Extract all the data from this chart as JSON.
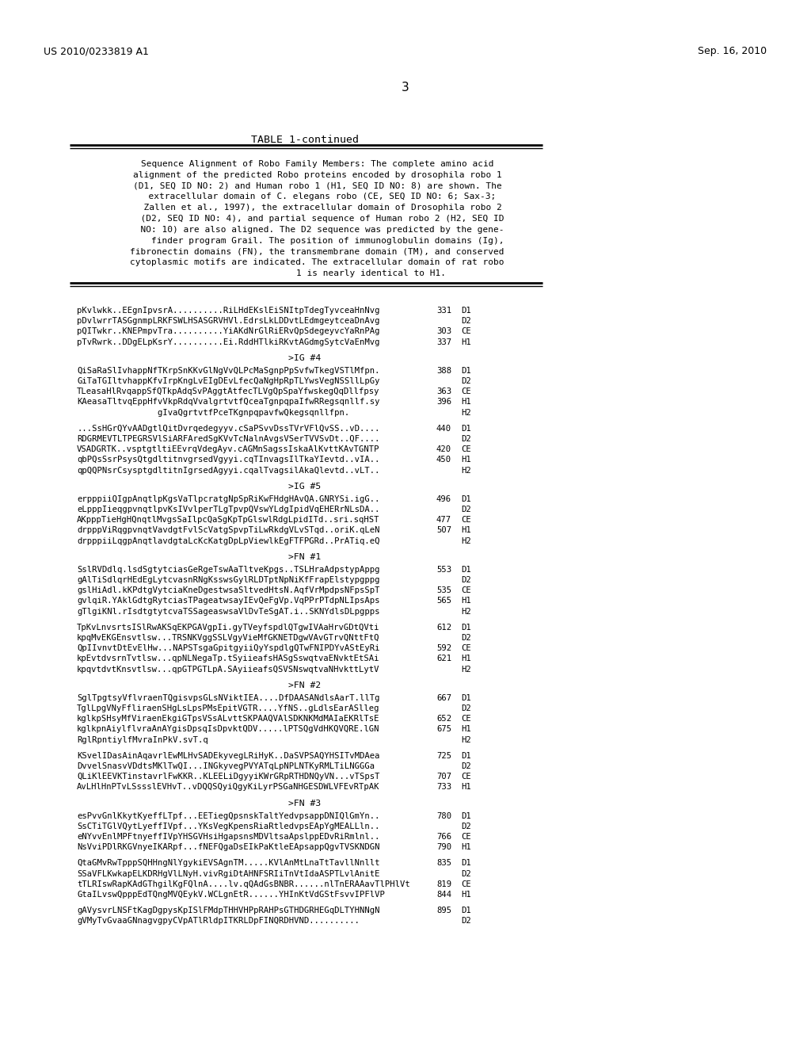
{
  "header_left": "US 2010/0233819 A1",
  "header_right": "Sep. 16, 2010",
  "page_number": "3",
  "table_title": "TABLE 1-continued",
  "description_text": [
    "    Sequence Alignment of Robo Family Members: The complete amino acid",
    "    alignment of the predicted Robo proteins encoded by drosophila robo 1",
    "    (D1, SEQ ID NO: 2) and Human robo 1 (H1, SEQ ID NO: 8) are shown. The",
    "      extracellular domain of C. elegans robo (CE, SEQ ID NO: 6; Sax-3;",
    "      Zallen et al., 1997), the extracellular domain of Drosophila robo 2",
    "      (D2, SEQ ID NO: 4), and partial sequence of Human robo 2 (H2, SEQ ID",
    "      NO: 10) are also aligned. The D2 sequence was predicted by the gene-",
    "        finder program Grail. The position of immunoglobulin domains (Ig),",
    "    fibronectin domains (FN), the transmembrane domain (TM), and conserved",
    "    cytoplasmic motifs are indicated. The extracellular domain of rat robo",
    "                        1 is nearly identical to H1."
  ],
  "sequence_blocks": [
    {
      "lines": [
        {
          "text": "pKvlwkk..EEgnIpvsrA..........RiLHdEKslEiSNItpTdegTyvceaHnNvg",
          "num": "331",
          "label": "D1"
        },
        {
          "text": "pDvlwrrTASGgnmpLRKFSWLHSASGRVHVl.EdrsLkLDDvtLEdmgeytceaDnAvg",
          "num": "",
          "label": "D2"
        },
        {
          "text": "pQITwkr..KNEPmpvTra..........YiAKdNrGlRiERvQpSdegeyvcYaRnPAg",
          "num": "303",
          "label": "CE"
        },
        {
          "text": "pTvRwrk..DDgELpKsrY..........Ei.RddHTlkiRKvtAGdmgSytcVaEnMvg",
          "num": "337",
          "label": "H1"
        }
      ]
    },
    {
      "header": ">IG #4",
      "lines": [
        {
          "text": "QiSaRaSlIvhappNfTKrpSnKKvGlNgVvQLPcMaSgnpPpSvfwTkegVSTlMfpn.",
          "num": "388",
          "label": "D1"
        },
        {
          "text": "GiTaTGIltvhappKfvIrpKngLvEIgDEvLfecQaNgHpRpTLYwsVegNSSllLpGy",
          "num": "",
          "label": "D2"
        },
        {
          "text": "TLeasaHlRvqappSfQTkpAdqSvPAggtAtfecTLVgQpSpaYfwskegQqDllfpsy",
          "num": "363",
          "label": "CE"
        },
        {
          "text": "KAeasaTltvqEppHfvVkpRdqVvalgrtvtfQceaTgnpqpaIfwRRegsqnllf.sy",
          "num": "396",
          "label": "H1"
        },
        {
          "text": "                gIvaQgrtvtfPceTKgnpqpavfwQkegsqnllfpn.",
          "num": "",
          "label": "H2"
        }
      ]
    },
    {
      "lines": [
        {
          "text": "...SsHGrQYvAADgtlQitDvrqedegyyv.cSaPSvvDssTVrVFlQvSS..vD....",
          "num": "440",
          "label": "D1"
        },
        {
          "text": "RDGRMEVTLTPEGRSVlSiARFAredSgKVvTcNalnAvgsVSerTVVSvDt..QF....",
          "num": "",
          "label": "D2"
        },
        {
          "text": "VSADGRTK..vsptgtltiEEvrqVdegAyv.cAGMnSagssIskaAlKvttKAvTGNTP",
          "num": "420",
          "label": "CE"
        },
        {
          "text": "qbPQsSsrPsysQtgdltitnvgrsedVgyyi.cqTInvagsIlTkaYIevtd..vIA..",
          "num": "450",
          "label": "H1"
        },
        {
          "text": "qpQQPNsrCsysptgdltitnIgrsedAgyyi.cqalTvagsilAkaQlevtd..vLT..",
          "num": "",
          "label": "H2"
        }
      ]
    },
    {
      "header": ">IG #5",
      "lines": [
        {
          "text": "erpppiiQIgpAnqtlpKgsVaTlpcratgNpSpRiKwFHdgHAvQA.GNRYSi.igG..",
          "num": "496",
          "label": "D1"
        },
        {
          "text": "eLpppIieqgpvnqtlpvKsIVvlperTLgTpvpQVswYLdgIpidVqEHERrNLsDA..",
          "num": "",
          "label": "D2"
        },
        {
          "text": "AKpppTieHgHQnqtlMvgsSaIlpcQaSgKpTpGlswlRdgLpidITd..sri.sqHST",
          "num": "477",
          "label": "CE"
        },
        {
          "text": "drpppViRqgpvnqtVavdgtFvlScVatgSpvpTiLwRkdgVLvSTqd..oriK.qLeN",
          "num": "507",
          "label": "H1"
        },
        {
          "text": "drpppiiLqgpAnqtlavdgtaLcKcKatgDpLpViewlkEgFTFPGRd..PrATiq.eQ",
          "num": "",
          "label": "H2"
        }
      ]
    },
    {
      "header": ">FN #1",
      "lines": [
        {
          "text": "SslRVDdlq.lsdSgtytciasGeRgeTswAaTltveKpgs..TSLHraAdpstypAppg",
          "num": "553",
          "label": "D1"
        },
        {
          "text": "gAlTiSdlqrHEdEgLytcvasnRNgKsswsGylRLDTptNpNiKfFrapElstypgppg",
          "num": "",
          "label": "D2"
        },
        {
          "text": "gslHiAdl.kKPdtgVytciaKneDgestwsaSltvedHtsN.AqfVrMpdpsNFpsSpT",
          "num": "535",
          "label": "CE"
        },
        {
          "text": "gvlqiR.YAklGdtgRytciasTPageatwsayIEvQeFgVp.VqPPrPTdpNLIpsAps",
          "num": "565",
          "label": "H1"
        },
        {
          "text": "gTlgiKNl.rIsdtgtytcvaTSSageaswsaVlDvTeSgAT.i..SKNYdlsDLpgpps",
          "num": "",
          "label": "H2"
        }
      ]
    },
    {
      "lines": [
        {
          "text": "TpKvLnvsrtsISlRwAKSqEKPGAVgpIi.gyTVeyfspdlQTgwIVAaHrvGDtQVti",
          "num": "612",
          "label": "D1"
        },
        {
          "text": "kpqMvEKGEnsvtlsw...TRSNKVggSSLVgyVieMfGKNETDgwVAvGTrvQNttFtQ",
          "num": "",
          "label": "D2"
        },
        {
          "text": "QpIIvnvtDtEvElHw...NAPSTsgaGpitgyiiQyYspdlgQTwFNIPDYvAStEyRi",
          "num": "592",
          "label": "CE"
        },
        {
          "text": "kpEvtdvsrnTvtlsw...qpNLNegaTp.tSyiieafsHASgSswqtvaENvktEtSAi",
          "num": "621",
          "label": "H1"
        },
        {
          "text": "kpqvtdvtKnsvtlsw...qpGTPGTLpA.SAyiieafsQSVSNswqtvaNHvkttLytV",
          "num": "",
          "label": "H2"
        }
      ]
    },
    {
      "header": ">FN #2",
      "lines": [
        {
          "text": "SglTpgtsyVflvraenTQgisvpsGLsNViktIEA....DfDAASANdlsAarT.llTg",
          "num": "667",
          "label": "D1"
        },
        {
          "text": "TglLpgVNyFfliraenSHgLsLpsPMsEpitVGTR....YfNS..gLdlsEarASlleg",
          "num": "",
          "label": "D2"
        },
        {
          "text": "kglkpSHsyMfViraenEkgiGTpsVSsALvttSKPAAQVAlSDKNKMdMAIaEKRlTsE",
          "num": "652",
          "label": "CE"
        },
        {
          "text": "kglkpnAiylflvraAnAYgisDpsqIsDpvktQDV.....lPTSQgVdHKQVQRE.lGN",
          "num": "675",
          "label": "H1"
        },
        {
          "text": "RglRpntiylfMvraInPkV.svT.q",
          "num": "",
          "label": "H2"
        }
      ]
    },
    {
      "lines": [
        {
          "text": "KSvelIDasAinAqavrlEwMLHvSADEkyvegLRiHyK..DaSVPSAQYHSITvMDAea",
          "num": "725",
          "label": "D1"
        },
        {
          "text": "DvvelSnasvVDdtsMKlTwQI...INGkyvegPVYATqLpNPLNTKyRMLTiLNGGGa",
          "num": "",
          "label": "D2"
        },
        {
          "text": "QLiKlEEVKTinstavrlFwKKR..KLEELiDgyyiKWrGRpRTHDNQyVN...vTSpsT",
          "num": "707",
          "label": "CE"
        },
        {
          "text": "AvLHlHnPTvLSssslEVHvT..vDQQSQyiQgyKiLyrPSGaNHGESDWLVFEvRTpAK",
          "num": "733",
          "label": "H1"
        }
      ]
    },
    {
      "header": ">FN #3",
      "lines": [
        {
          "text": "esPvvGnlKkytKyeffLTpf...EETiegQpsnskTaltYedvpsappDNIQlGmYn..",
          "num": "780",
          "label": "D1"
        },
        {
          "text": "SsCTiTGlVQytLyeffIVpf...YKsVegKpensRiaRtledvpsEApYgMEALLln..",
          "num": "",
          "label": "D2"
        },
        {
          "text": "eNYvvEnlMPFtnyeffIVpYHSGVHsiHgapsnsMDVltsaApslppEDvRiRmlnl..",
          "num": "766",
          "label": "CE"
        },
        {
          "text": "NsVviPDlRKGVnyeIKARpf...fNEFQgaDsEIkPaKtleEApsappQgvTVSKNDGN",
          "num": "790",
          "label": "H1"
        }
      ]
    },
    {
      "lines": [
        {
          "text": "QtaGMvRwTpppSQHHngNlYgykiEVSAgnTM.....KVlAnMtLnaTtTavllNnllt",
          "num": "835",
          "label": "D1"
        },
        {
          "text": "SSaVFLKwkapELKDRHgVlLNyH.vivRgiDtAHNFSRIiTnVtIdaASPTLvlAnitE",
          "num": "",
          "label": "D2"
        },
        {
          "text": "tTLRIswRapKAdGThgilKgFQlnA....lv.qQAdGsBNBR......nlTnERAAavTlPHlVt",
          "num": "819",
          "label": "CE"
        },
        {
          "text": "GtaILvswQpppEdTQngMVQEykV.WCLgnEtR......YHInKtVdGStFsvvIPFlVP",
          "num": "844",
          "label": "H1"
        }
      ]
    },
    {
      "lines": [
        {
          "text": "gAVysvrLNSFtKagDgpysKpISlFMdpTHHVHPpRAHPsGTHDGRHEGqDLTYHNNgN",
          "num": "895",
          "label": "D1"
        },
        {
          "text": "gVMyTvGvaaGNnagvgpyCVpATlRldpITKRLDpFINQRDHVND..........",
          "num": "",
          "label": "D2"
        }
      ]
    }
  ]
}
